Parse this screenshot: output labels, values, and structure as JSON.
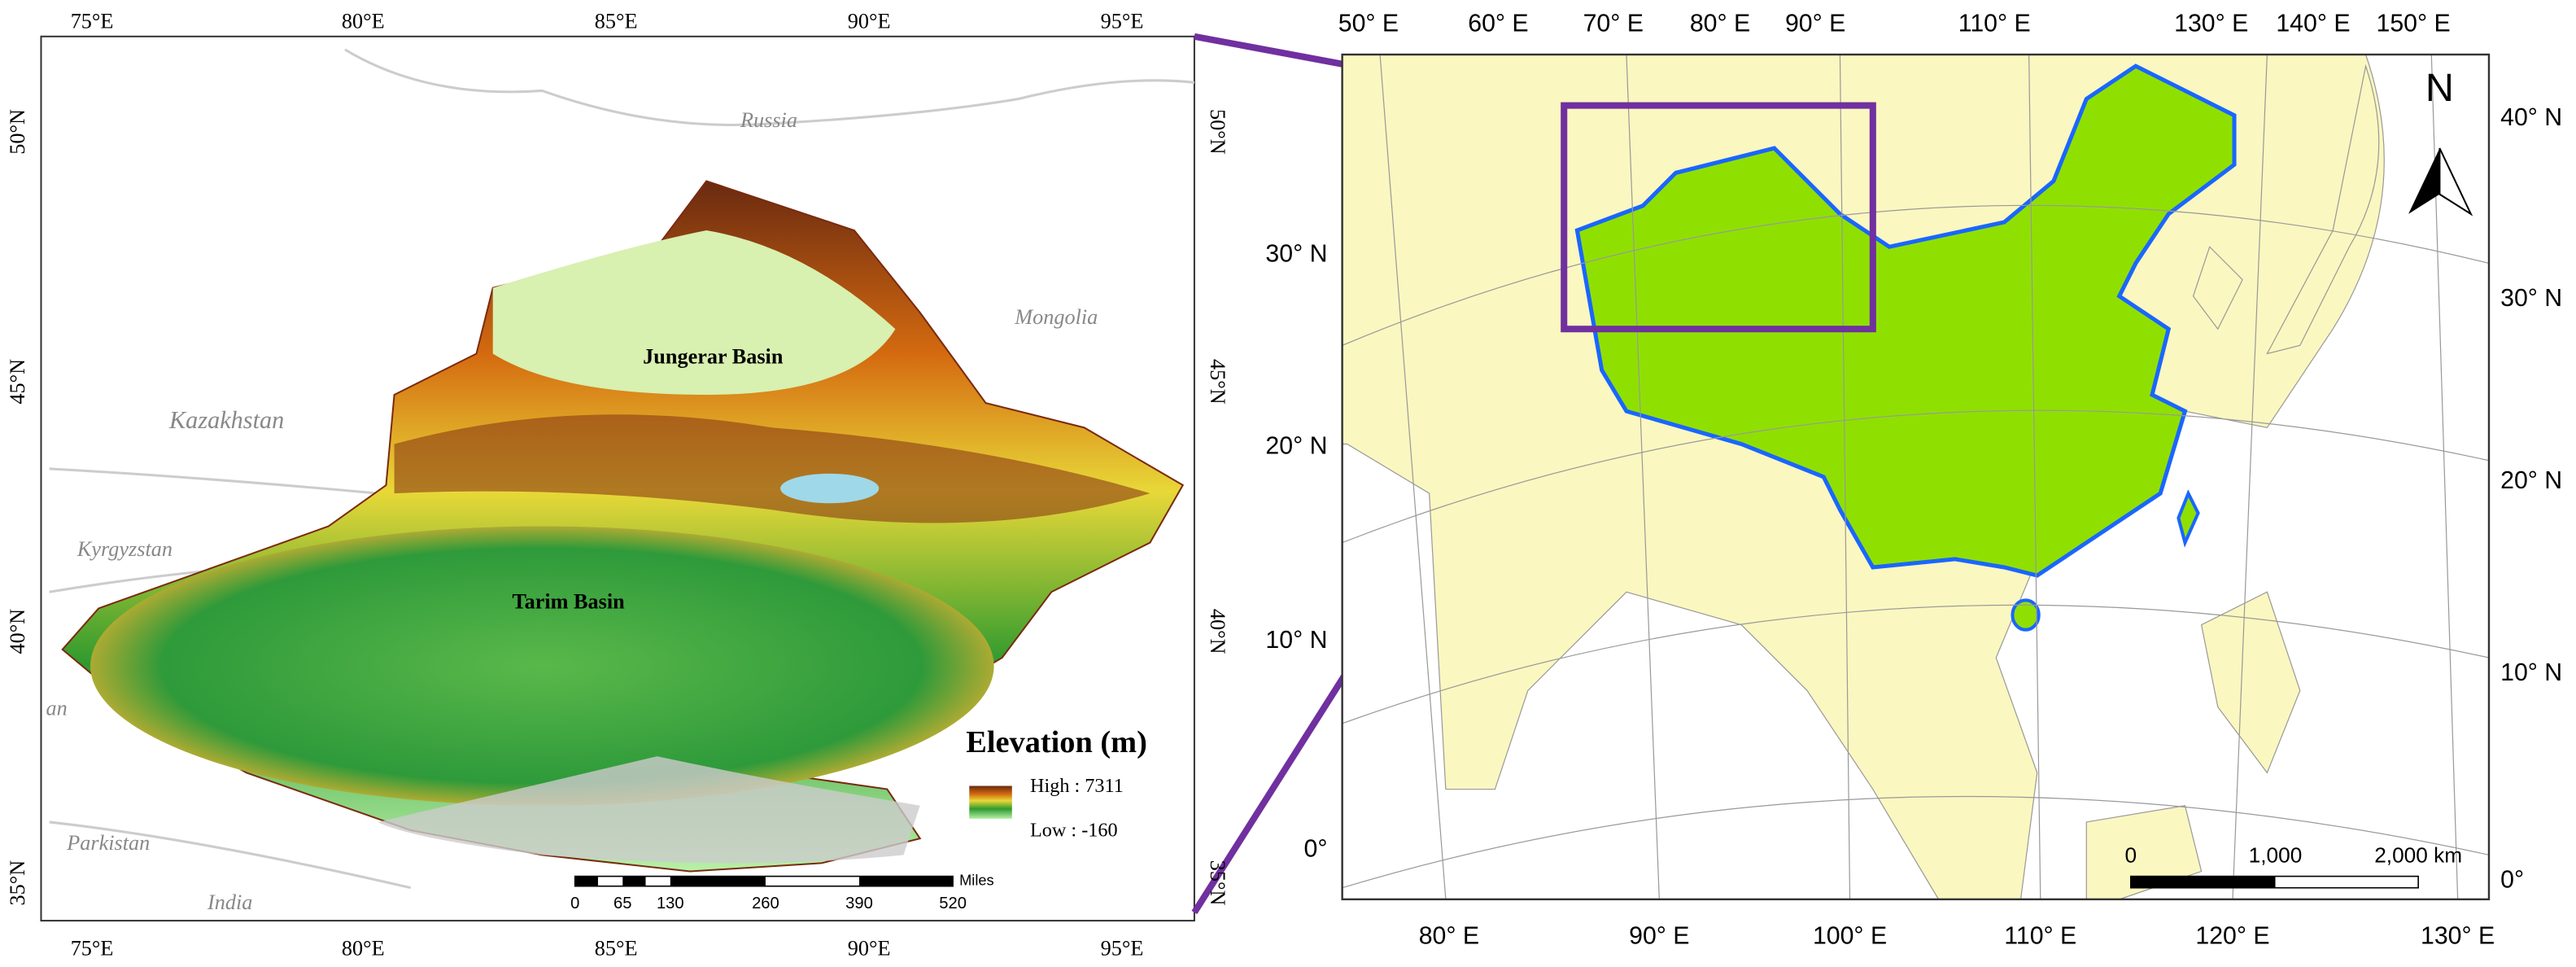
{
  "left_map": {
    "top_ticks": [
      "75°E",
      "80°E",
      "85°E",
      "90°E",
      "95°E"
    ],
    "bottom_ticks": [
      "75°E",
      "80°E",
      "85°E",
      "90°E",
      "95°E"
    ],
    "left_ticks": [
      "50°N",
      "45°N",
      "40°N",
      "35°N"
    ],
    "right_ticks": [
      "50°N",
      "45°N",
      "40°N",
      "35°N"
    ],
    "places": [
      "Russia",
      "Mongolia",
      "Kazakhstan",
      "Kyrgyzstan",
      "an",
      "Parkistan",
      "India"
    ],
    "basins": [
      "Jungerar Basin",
      "Tarim Basin"
    ],
    "legend": {
      "title": "Elevation (m)",
      "high": "High : 7311",
      "low": "Low : -160"
    },
    "scale": {
      "labels": [
        "0",
        "65",
        "130",
        "260",
        "390",
        "520"
      ],
      "unit": "Miles"
    }
  },
  "right_map": {
    "top_ticks": [
      "50° E",
      "60° E",
      "70° E",
      "80° E",
      "90° E",
      "110° E",
      "130° E",
      "140° E",
      "150° E"
    ],
    "bottom_ticks": [
      "80° E",
      "90° E",
      "100° E",
      "110° E",
      "120° E",
      "130° E"
    ],
    "left_ticks": [
      "30° N",
      "20° N",
      "10° N",
      "0°"
    ],
    "right_ticks": [
      "40° N",
      "30° N",
      "20° N",
      "10° N",
      "0°"
    ],
    "north": "N",
    "scale": {
      "labels": [
        "0",
        "1,000",
        "2,000 km"
      ]
    }
  }
}
